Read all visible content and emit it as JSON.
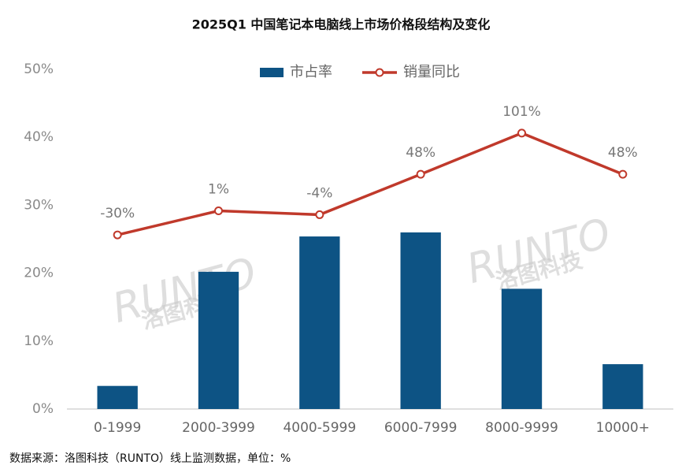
{
  "chart_data": {
    "type": "bar-line",
    "title": "2025Q1 中国笔记本电脑线上市场价格段结构及变化",
    "categories": [
      "0-1999",
      "2000-3999",
      "4000-5999",
      "6000-7999",
      "8000-9999",
      "10000+"
    ],
    "series": [
      {
        "name": "市占率",
        "type": "bar",
        "color": "#0d5384",
        "values": [
          3.4,
          20.2,
          25.4,
          26.0,
          17.7,
          6.6
        ]
      },
      {
        "name": "销量同比",
        "type": "line",
        "axis": "y2",
        "color": "#c0392b",
        "values": [
          -30,
          1,
          -4,
          48,
          101,
          48
        ],
        "value_labels": [
          "-30%",
          "1%",
          "-4%",
          "48%",
          "101%",
          "48%"
        ]
      }
    ],
    "ylim": [
      0,
      50
    ],
    "yticks": [
      {
        "value": 0,
        "label": "0%"
      },
      {
        "value": 10,
        "label": "10%"
      },
      {
        "value": 20,
        "label": "20%"
      },
      {
        "value": 30,
        "label": "30%"
      },
      {
        "value": 40,
        "label": "40%"
      },
      {
        "value": 50,
        "label": "50%"
      }
    ],
    "y2lim": [
      -254,
      183
    ],
    "grid": false,
    "legend": "top",
    "watermark": [
      "RUNTO",
      "洛图科技"
    ],
    "source": "数据来源：洛图科技（RUNTO）线上监测数据，单位：%"
  }
}
